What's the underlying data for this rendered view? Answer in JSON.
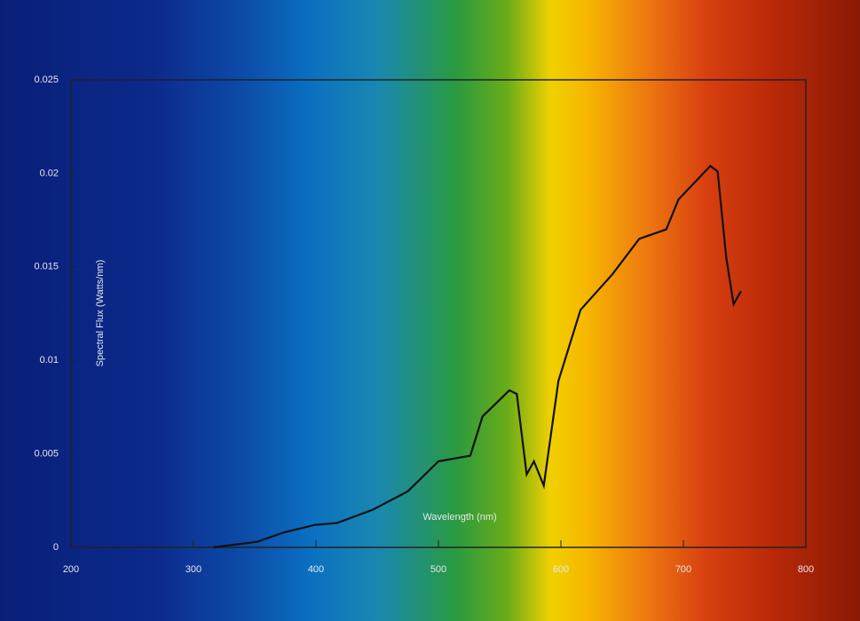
{
  "chart_data": {
    "type": "line",
    "x_label": "Wavelength (nm)",
    "y_label": "Spectral Flux (Watts/nm)",
    "x": [
      316,
      352,
      374,
      399,
      417,
      446,
      475,
      500,
      526,
      536,
      558,
      564,
      572,
      578,
      586,
      598,
      616,
      642,
      664,
      686,
      696,
      722,
      728,
      735,
      741,
      747
    ],
    "values": [
      0,
      0.0003,
      0.0008,
      0.0012,
      0.0013,
      0.002,
      0.003,
      0.0046,
      0.0049,
      0.007,
      0.0084,
      0.0082,
      0.0039,
      0.0046,
      0.0033,
      0.0089,
      0.0127,
      0.0146,
      0.0165,
      0.017,
      0.0186,
      0.0204,
      0.0201,
      0.0155,
      0.013,
      0.0137
    ],
    "color": "#111111",
    "xlim": [
      200,
      800
    ],
    "ylim": [
      0,
      0.025
    ],
    "xticks": [
      200,
      300,
      400,
      500,
      600,
      700,
      800
    ],
    "yticks": [
      0,
      0.005,
      0.01,
      0.015,
      0.02,
      0.025
    ]
  }
}
